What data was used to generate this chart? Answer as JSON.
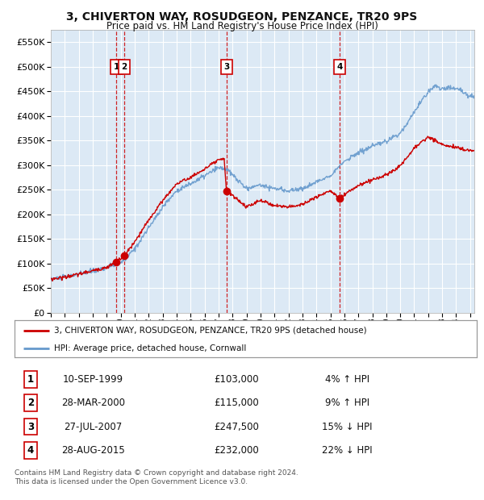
{
  "title": "3, CHIVERTON WAY, ROSUDGEON, PENZANCE, TR20 9PS",
  "subtitle": "Price paid vs. HM Land Registry's House Price Index (HPI)",
  "background_color": "#ffffff",
  "plot_bg_color": "#dce9f5",
  "grid_color": "#ffffff",
  "sale_color": "#cc0000",
  "hpi_color": "#6699cc",
  "transactions": [
    {
      "num": 1,
      "date": "10-SEP-1999",
      "price": 103000,
      "hpi_pct": "4% ↑ HPI",
      "x": 1999.69
    },
    {
      "num": 2,
      "date": "28-MAR-2000",
      "price": 115000,
      "hpi_pct": "9% ↑ HPI",
      "x": 2000.24
    },
    {
      "num": 3,
      "date": "27-JUL-2007",
      "price": 247500,
      "hpi_pct": "15% ↓ HPI",
      "x": 2007.57
    },
    {
      "num": 4,
      "date": "28-AUG-2015",
      "price": 232000,
      "hpi_pct": "22% ↓ HPI",
      "x": 2015.66
    }
  ],
  "legend_label_sale": "3, CHIVERTON WAY, ROSUDGEON, PENZANCE, TR20 9PS (detached house)",
  "legend_label_hpi": "HPI: Average price, detached house, Cornwall",
  "footnote": "Contains HM Land Registry data © Crown copyright and database right 2024.\nThis data is licensed under the Open Government Licence v3.0.",
  "xmin": 1995.0,
  "xmax": 2025.3,
  "ylim": [
    0,
    575000
  ],
  "yticks": [
    0,
    50000,
    100000,
    150000,
    200000,
    250000,
    300000,
    350000,
    400000,
    450000,
    500000,
    550000
  ],
  "hpi_anchors": [
    [
      1995.0,
      68000
    ],
    [
      1996.0,
      72000
    ],
    [
      1997.0,
      78000
    ],
    [
      1998.0,
      85000
    ],
    [
      1999.0,
      92000
    ],
    [
      1999.69,
      99000
    ],
    [
      2000.0,
      103000
    ],
    [
      2000.24,
      105500
    ],
    [
      2001.0,
      130000
    ],
    [
      2002.0,
      172000
    ],
    [
      2003.0,
      215000
    ],
    [
      2004.0,
      248000
    ],
    [
      2005.0,
      262000
    ],
    [
      2006.0,
      278000
    ],
    [
      2007.0,
      295000
    ],
    [
      2007.57,
      292000
    ],
    [
      2008.0,
      280000
    ],
    [
      2009.0,
      252000
    ],
    [
      2010.0,
      260000
    ],
    [
      2011.0,
      252000
    ],
    [
      2012.0,
      248000
    ],
    [
      2013.0,
      252000
    ],
    [
      2014.0,
      265000
    ],
    [
      2015.0,
      280000
    ],
    [
      2015.66,
      297000
    ],
    [
      2016.0,
      308000
    ],
    [
      2017.0,
      325000
    ],
    [
      2018.0,
      338000
    ],
    [
      2019.0,
      348000
    ],
    [
      2020.0,
      365000
    ],
    [
      2021.0,
      408000
    ],
    [
      2022.0,
      450000
    ],
    [
      2022.5,
      462000
    ],
    [
      2023.0,
      455000
    ],
    [
      2024.0,
      458000
    ],
    [
      2025.0,
      440000
    ]
  ],
  "sale_anchors": [
    [
      1995.0,
      68000
    ],
    [
      1996.0,
      72000
    ],
    [
      1997.0,
      78000
    ],
    [
      1998.0,
      85000
    ],
    [
      1999.0,
      92000
    ],
    [
      1999.69,
      103000
    ],
    [
      2000.0,
      110000
    ],
    [
      2000.24,
      115000
    ],
    [
      2001.0,
      143000
    ],
    [
      2002.0,
      188000
    ],
    [
      2003.0,
      228000
    ],
    [
      2004.0,
      262000
    ],
    [
      2005.0,
      275000
    ],
    [
      2006.0,
      292000
    ],
    [
      2007.0,
      310000
    ],
    [
      2007.4,
      312000
    ],
    [
      2007.57,
      247500
    ],
    [
      2008.0,
      238000
    ],
    [
      2009.0,
      215000
    ],
    [
      2010.0,
      228000
    ],
    [
      2011.0,
      218000
    ],
    [
      2012.0,
      215000
    ],
    [
      2013.0,
      220000
    ],
    [
      2014.0,
      235000
    ],
    [
      2015.0,
      248000
    ],
    [
      2015.66,
      232000
    ],
    [
      2016.0,
      240000
    ],
    [
      2017.0,
      258000
    ],
    [
      2018.0,
      270000
    ],
    [
      2019.0,
      280000
    ],
    [
      2020.0,
      298000
    ],
    [
      2021.0,
      335000
    ],
    [
      2022.0,
      358000
    ],
    [
      2023.0,
      342000
    ],
    [
      2024.0,
      336000
    ],
    [
      2025.0,
      330000
    ]
  ]
}
